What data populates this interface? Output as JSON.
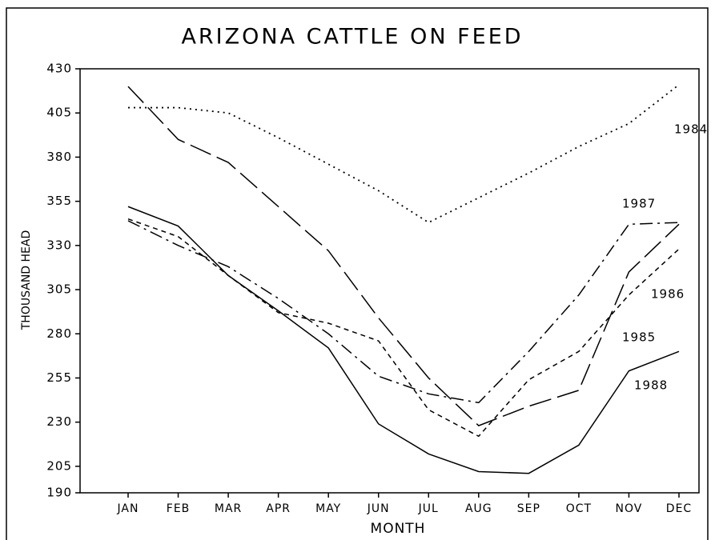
{
  "chart_data": {
    "type": "line",
    "title": "ARIZONA CATTLE ON FEED",
    "ylabel": "THOUSAND HEAD",
    "xlabel": "MONTH",
    "categories": [
      "JAN",
      "FEB",
      "MAR",
      "APR",
      "MAY",
      "JUN",
      "JUL",
      "AUG",
      "SEP",
      "OCT",
      "NOV",
      "DEC"
    ],
    "ylim": [
      190,
      430
    ],
    "yticks": [
      190,
      205,
      230,
      255,
      280,
      305,
      330,
      355,
      380,
      405,
      430
    ],
    "series": [
      {
        "name": "1984",
        "color": "#000000",
        "style": "dotted",
        "values": [
          408,
          408,
          405,
          391,
          376,
          361,
          343,
          357,
          371,
          386,
          399,
          421
        ]
      },
      {
        "name": "1987",
        "color": "#000000",
        "style": "dash-dot",
        "values": [
          344,
          330,
          318,
          300,
          280,
          256,
          246,
          241,
          270,
          302,
          342,
          343
        ]
      },
      {
        "name": "1986",
        "color": "#000000",
        "style": "short-dash",
        "values": [
          345,
          335,
          313,
          292,
          286,
          276,
          237,
          222,
          254,
          270,
          302,
          328
        ]
      },
      {
        "name": "1985",
        "color": "#000000",
        "style": "long-dash",
        "values": [
          420,
          390,
          377,
          352,
          327,
          289,
          255,
          228,
          239,
          248,
          315,
          342
        ]
      },
      {
        "name": "1988",
        "color": "#000000",
        "style": "solid",
        "values": [
          352,
          341,
          313,
          293,
          272,
          229,
          212,
          202,
          201,
          217,
          259,
          270
        ]
      }
    ]
  }
}
